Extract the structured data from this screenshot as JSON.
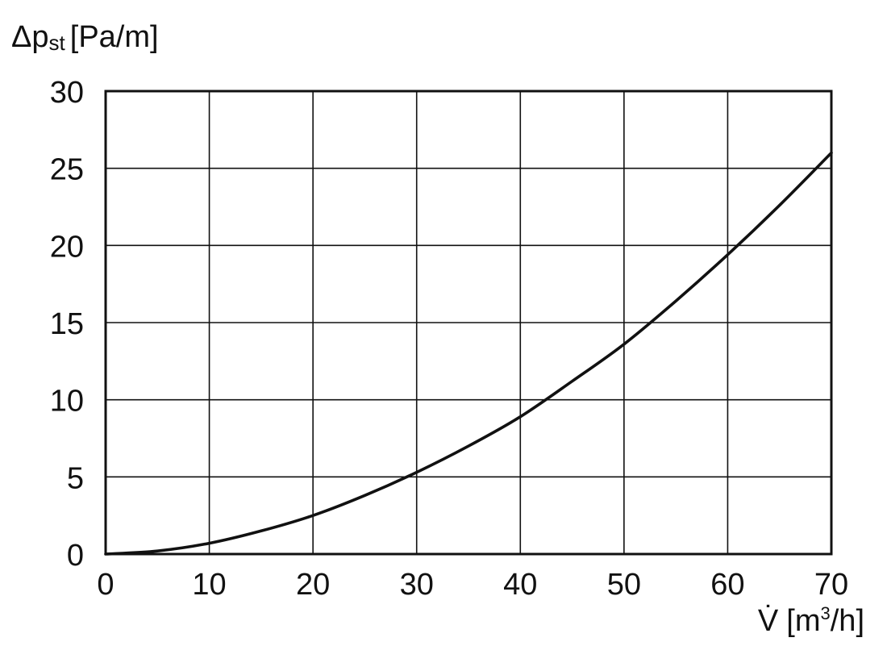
{
  "chart_data": {
    "type": "line",
    "ylabel_main": "Δp",
    "ylabel_sub": "st",
    "ylabel_unit": "[Pa/m]",
    "xlabel_main": "V̇",
    "xlabel_unit_pre": "[m",
    "xlabel_unit_sup": "3",
    "xlabel_unit_post": "/h]",
    "xlim": [
      0,
      70
    ],
    "ylim": [
      0,
      30
    ],
    "x_ticks": [
      "0",
      "10",
      "20",
      "30",
      "40",
      "50",
      "60",
      "70"
    ],
    "y_ticks": [
      "0",
      "5",
      "10",
      "15",
      "20",
      "25",
      "30"
    ],
    "grid": true,
    "series": [
      {
        "x": [
          0,
          5,
          10,
          15,
          20,
          25,
          30,
          35,
          40,
          45,
          50,
          55,
          60,
          65,
          70
        ],
        "y": [
          0,
          0.2,
          0.7,
          1.5,
          2.5,
          3.8,
          5.3,
          7.0,
          8.9,
          11.2,
          13.6,
          16.4,
          19.4,
          22.6,
          26.0
        ]
      }
    ]
  }
}
